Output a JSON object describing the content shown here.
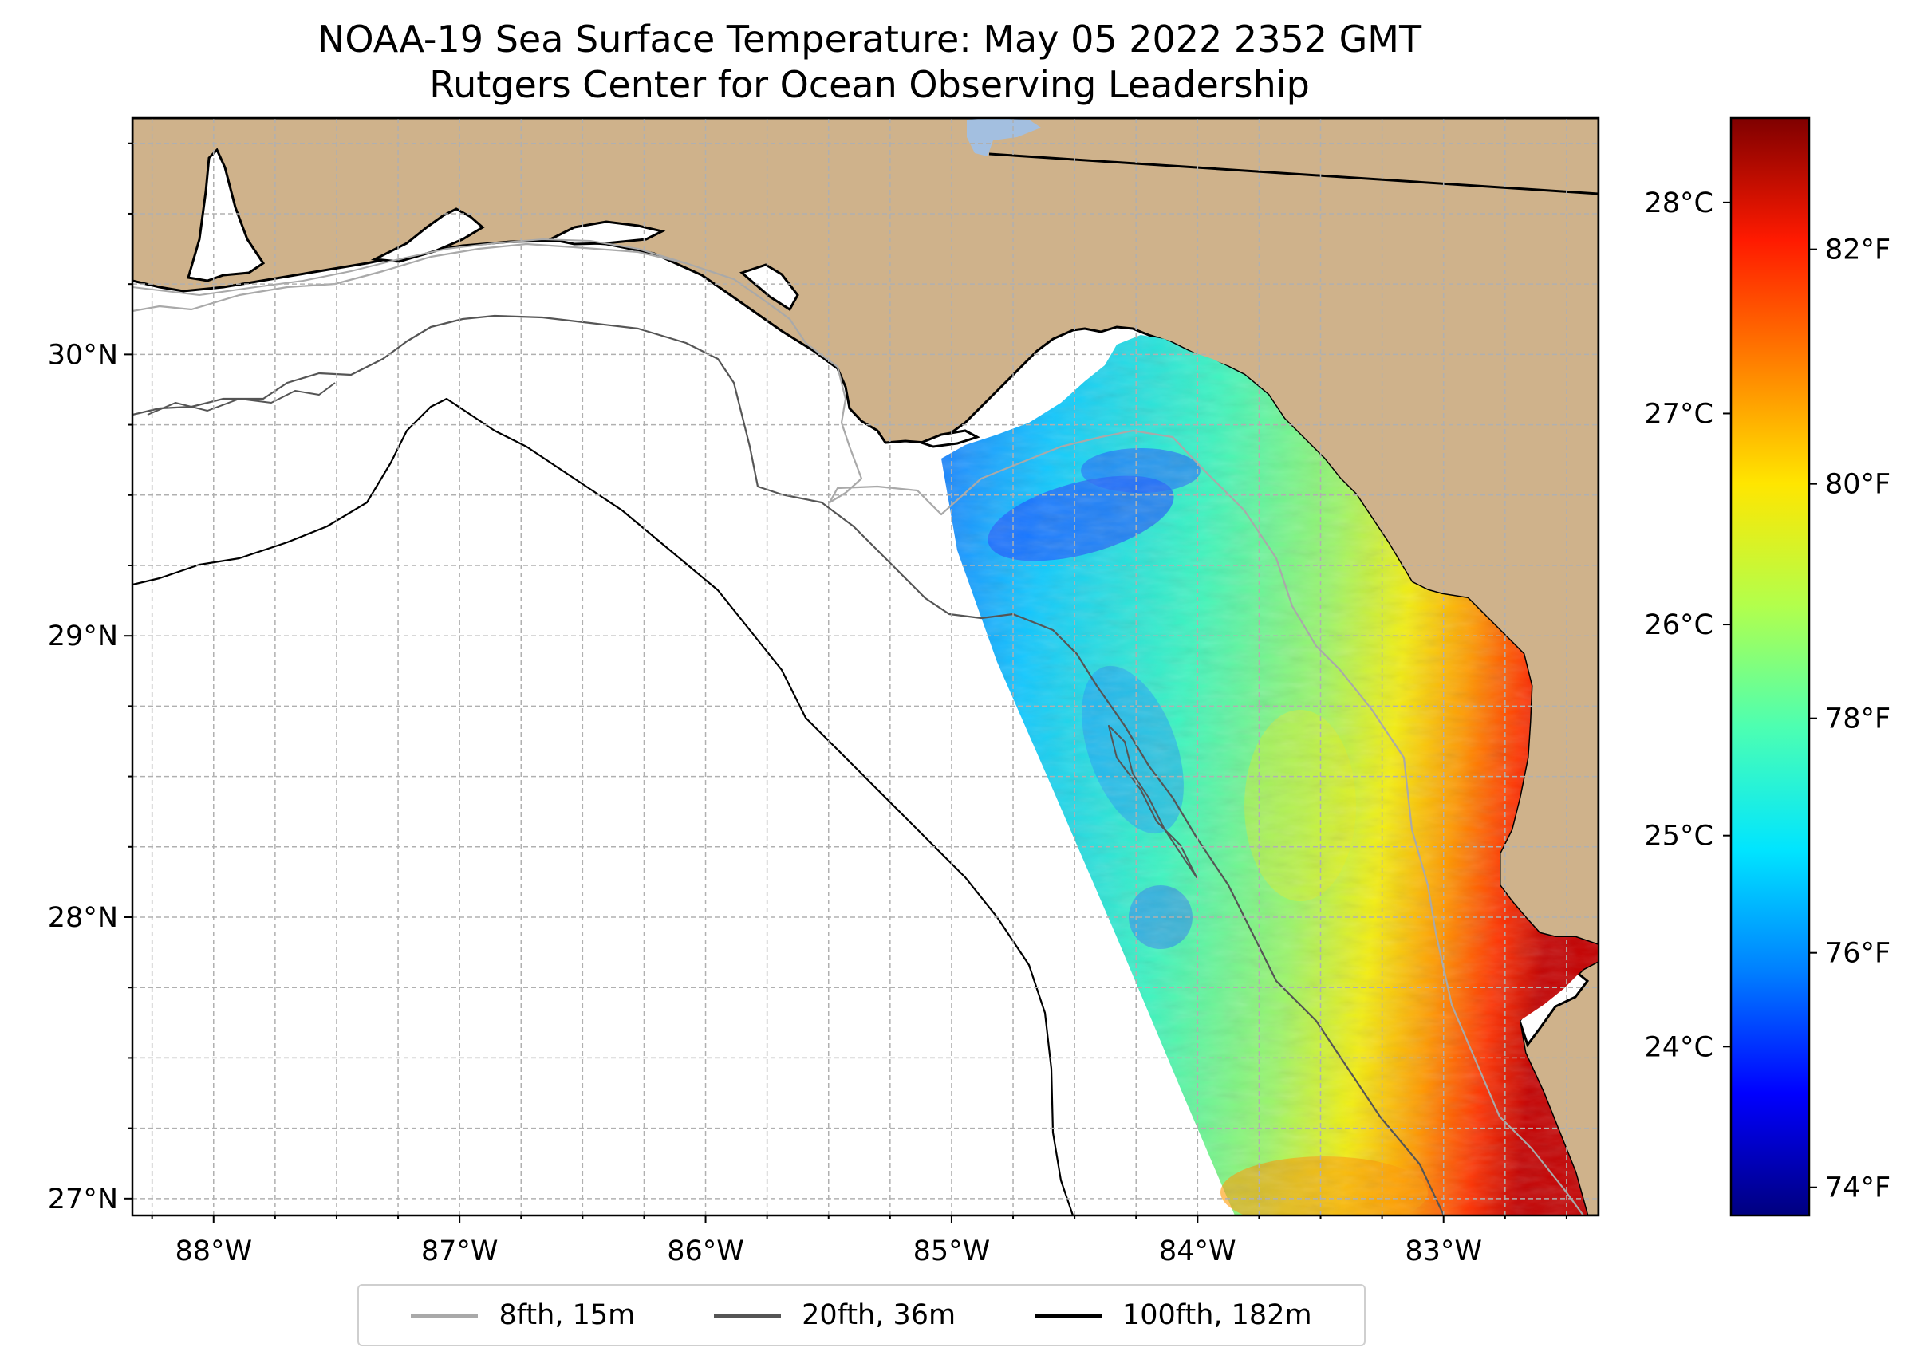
{
  "title": {
    "line1": "NOAA-19 Sea Surface Temperature: May 05 2022 2352 GMT",
    "line2": "Rutgers Center for Ocean Observing Leadership"
  },
  "map": {
    "extent": {
      "lon_min": -88.33,
      "lon_max": -82.37,
      "lat_min": 26.94,
      "lat_max": 30.84
    },
    "land_color": "#cfb28b",
    "ocean_color": "#ffffff",
    "grid_color": "#b0b0b0",
    "lake_color": "#a3bfe0",
    "x_ticks": [
      {
        "lon": -88,
        "label": "88°W"
      },
      {
        "lon": -87,
        "label": "87°W"
      },
      {
        "lon": -86,
        "label": "86°W"
      },
      {
        "lon": -85,
        "label": "85°W"
      },
      {
        "lon": -84,
        "label": "84°W"
      },
      {
        "lon": -83,
        "label": "83°W"
      }
    ],
    "y_ticks": [
      {
        "lat": 30,
        "label": "30°N"
      },
      {
        "lat": 29,
        "label": "29°N"
      },
      {
        "lat": 28,
        "label": "28°N"
      },
      {
        "lat": 27,
        "label": "27°N"
      }
    ]
  },
  "colorbar": {
    "celsius_range": [
      23.2,
      28.4
    ],
    "celsius_ticks": [
      {
        "value": 24,
        "label": "24°C"
      },
      {
        "value": 25,
        "label": "25°C"
      },
      {
        "value": 26,
        "label": "26°C"
      },
      {
        "value": 27,
        "label": "27°C"
      },
      {
        "value": 28,
        "label": "28°C"
      }
    ],
    "fahrenheit_ticks": [
      {
        "value": 74,
        "label": "74°F"
      },
      {
        "value": 76,
        "label": "76°F"
      },
      {
        "value": 78,
        "label": "78°F"
      },
      {
        "value": 80,
        "label": "80°F"
      },
      {
        "value": 82,
        "label": "82°F"
      }
    ],
    "colormap": [
      "#00007f",
      "#0000ff",
      "#007fff",
      "#00e5ff",
      "#4cffb2",
      "#b2ff4c",
      "#ffe600",
      "#ff7f00",
      "#ff1a00",
      "#7f0000"
    ]
  },
  "legend": {
    "items": [
      {
        "label": "8fth, 15m",
        "color": "#a9a9a9"
      },
      {
        "label": "20fth, 36m",
        "color": "#555555"
      },
      {
        "label": "100fth, 182m",
        "color": "#000000"
      }
    ]
  }
}
